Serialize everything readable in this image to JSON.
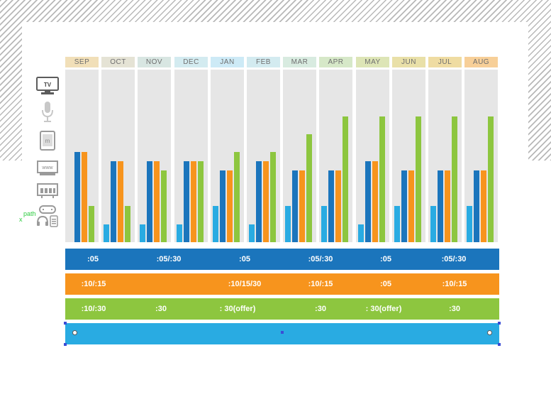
{
  "chart_data": {
    "type": "bar",
    "title": "",
    "xlabel": "",
    "ylabel": "",
    "categories": [
      "SEP",
      "OCT",
      "NOV",
      "DEC",
      "JAN",
      "FEB",
      "MAR",
      "APR",
      "MAY",
      "JUN",
      "JUL",
      "AUG"
    ],
    "category_colors": [
      "#f1dfb8",
      "#e5e3d5",
      "#d8e6e2",
      "#d3ebf0",
      "#cdeaf6",
      "#d3ebf0",
      "#d8ebe0",
      "#d6e8c8",
      "#dde5b6",
      "#e9e0a8",
      "#efdca2",
      "#f7cf98"
    ],
    "ylim": [
      0,
      10
    ],
    "series": [
      {
        "name": "light-blue",
        "color": "#29abe2",
        "values": [
          0,
          1,
          1,
          1,
          2,
          1,
          2,
          2,
          1,
          2,
          2,
          2
        ]
      },
      {
        "name": "dark-blue",
        "color": "#1b75bc",
        "values": [
          5,
          4.5,
          4.5,
          4.5,
          4,
          4.5,
          4,
          4,
          4.5,
          4,
          4,
          4
        ]
      },
      {
        "name": "orange",
        "color": "#f7941d",
        "values": [
          5,
          4.5,
          4.5,
          4.5,
          4,
          4.5,
          4,
          4,
          4.5,
          4,
          4,
          4
        ]
      },
      {
        "name": "green",
        "color": "#8dc63f",
        "values": [
          2,
          2,
          4,
          4.5,
          5,
          5,
          6,
          7,
          7,
          7,
          7,
          7
        ]
      }
    ]
  },
  "channel_icons": [
    {
      "name": "tv-icon",
      "label": "TV"
    },
    {
      "name": "microphone-icon"
    },
    {
      "name": "tablet-icon",
      "label": "m"
    },
    {
      "name": "web-icon",
      "label": "www"
    },
    {
      "name": "billboard-icon"
    },
    {
      "name": "gaming-mobile-icon"
    }
  ],
  "bands": [
    {
      "color": "#1b75bc",
      "labels": [
        ":05",
        ":05/:30",
        ":05",
        ":05/:30",
        ":05",
        ":05/:30"
      ]
    },
    {
      "color": "#f7941d",
      "labels": [
        ":10/:15",
        ":10/15/30",
        ":10/:15",
        ":05",
        ":10/:15"
      ]
    },
    {
      "color": "#8dc63f",
      "labels": [
        ":10/:30",
        ":30",
        ": 30(offer)",
        ":30",
        ": 30(offer)",
        ":30"
      ]
    },
    {
      "color": "#29abe2",
      "labels": []
    }
  ],
  "annotation": {
    "path_label": "path",
    "x_mark": "x"
  }
}
